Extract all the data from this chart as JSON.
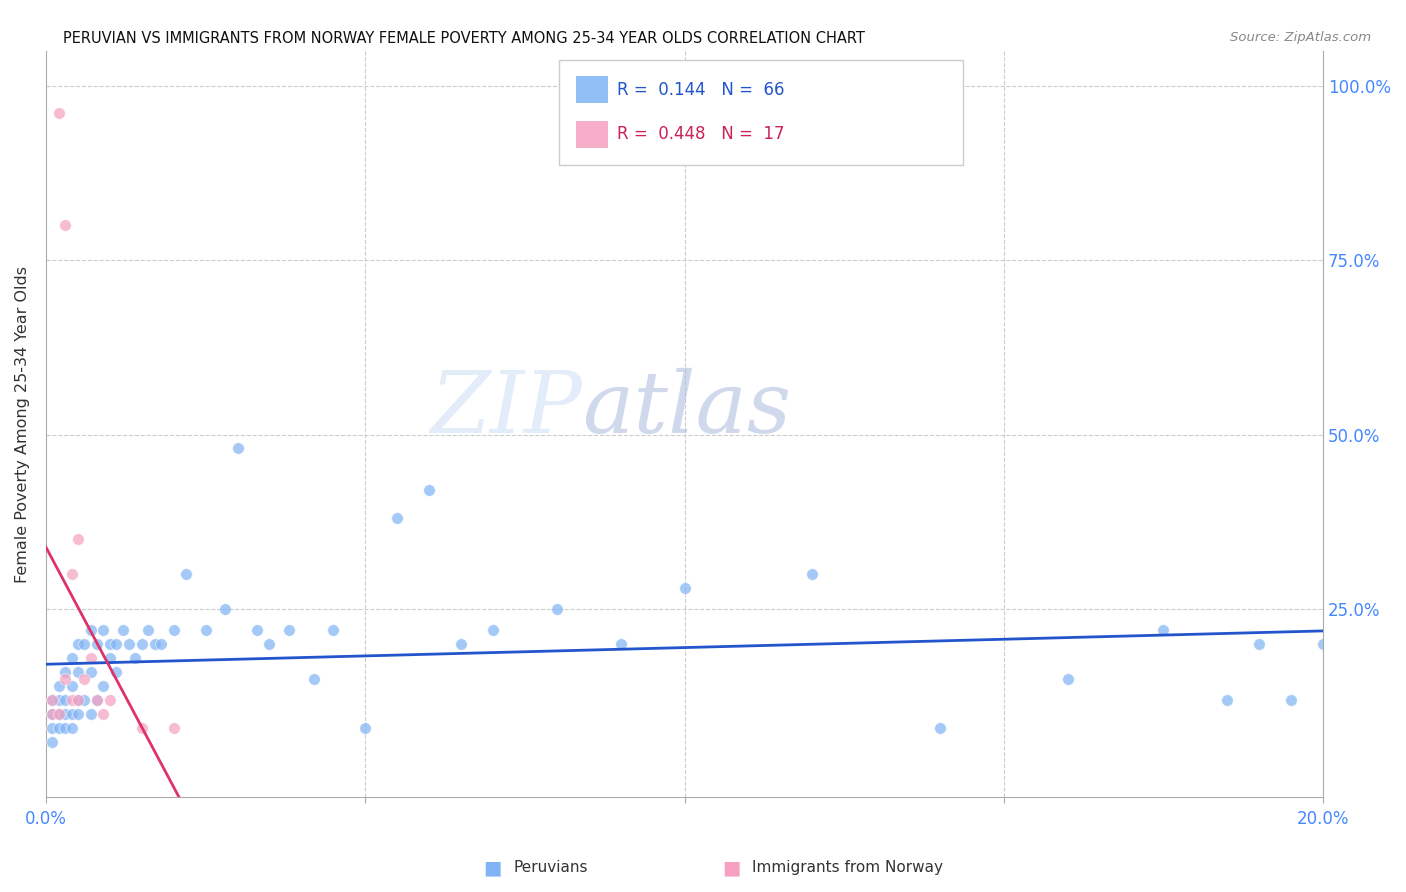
{
  "title": "PERUVIAN VS IMMIGRANTS FROM NORWAY FEMALE POVERTY AMONG 25-34 YEAR OLDS CORRELATION CHART",
  "source": "Source: ZipAtlas.com",
  "ylabel": "Female Poverty Among 25-34 Year Olds",
  "yaxis_labels": [
    "100.0%",
    "75.0%",
    "50.0%",
    "25.0%"
  ],
  "yaxis_values": [
    1.0,
    0.75,
    0.5,
    0.25
  ],
  "xlim": [
    0.0,
    0.2
  ],
  "ylim": [
    -0.02,
    1.05
  ],
  "watermark_zip": "ZIP",
  "watermark_atlas": "atlas",
  "color_peruvian": "#7fb3f5",
  "color_norway": "#f5a0c0",
  "trendline_peruvian_color": "#2255cc",
  "trendline_norway_color": "#dd3366",
  "trendline_dashed_color": "#bbbbbb",
  "peruvian_x": [
    0.001,
    0.001,
    0.001,
    0.001,
    0.002,
    0.002,
    0.002,
    0.002,
    0.003,
    0.003,
    0.003,
    0.003,
    0.004,
    0.004,
    0.004,
    0.004,
    0.005,
    0.005,
    0.005,
    0.005,
    0.006,
    0.006,
    0.007,
    0.007,
    0.007,
    0.008,
    0.008,
    0.009,
    0.009,
    0.01,
    0.01,
    0.011,
    0.011,
    0.012,
    0.013,
    0.014,
    0.015,
    0.016,
    0.017,
    0.018,
    0.02,
    0.022,
    0.025,
    0.028,
    0.03,
    0.033,
    0.035,
    0.038,
    0.042,
    0.045,
    0.05,
    0.055,
    0.06,
    0.065,
    0.07,
    0.08,
    0.09,
    0.1,
    0.12,
    0.14,
    0.16,
    0.175,
    0.185,
    0.19,
    0.195,
    0.2
  ],
  "peruvian_y": [
    0.12,
    0.1,
    0.08,
    0.06,
    0.14,
    0.12,
    0.1,
    0.08,
    0.16,
    0.12,
    0.1,
    0.08,
    0.18,
    0.14,
    0.1,
    0.08,
    0.2,
    0.16,
    0.12,
    0.1,
    0.2,
    0.12,
    0.22,
    0.16,
    0.1,
    0.2,
    0.12,
    0.22,
    0.14,
    0.2,
    0.18,
    0.2,
    0.16,
    0.22,
    0.2,
    0.18,
    0.2,
    0.22,
    0.2,
    0.2,
    0.22,
    0.3,
    0.22,
    0.25,
    0.48,
    0.22,
    0.2,
    0.22,
    0.15,
    0.22,
    0.08,
    0.38,
    0.42,
    0.2,
    0.22,
    0.25,
    0.2,
    0.28,
    0.3,
    0.08,
    0.15,
    0.22,
    0.12,
    0.2,
    0.12,
    0.2
  ],
  "norway_x": [
    0.001,
    0.001,
    0.002,
    0.002,
    0.003,
    0.003,
    0.004,
    0.004,
    0.005,
    0.005,
    0.006,
    0.007,
    0.008,
    0.009,
    0.01,
    0.015,
    0.02
  ],
  "norway_y": [
    0.12,
    0.1,
    0.96,
    0.1,
    0.8,
    0.15,
    0.3,
    0.12,
    0.35,
    0.12,
    0.15,
    0.18,
    0.12,
    0.1,
    0.12,
    0.08,
    0.08
  ],
  "norway_trendline_x0": 0.0,
  "norway_trendline_x1": 0.032,
  "norway_trendline_dashed_x0": 0.032,
  "norway_trendline_dashed_x1": 0.06
}
